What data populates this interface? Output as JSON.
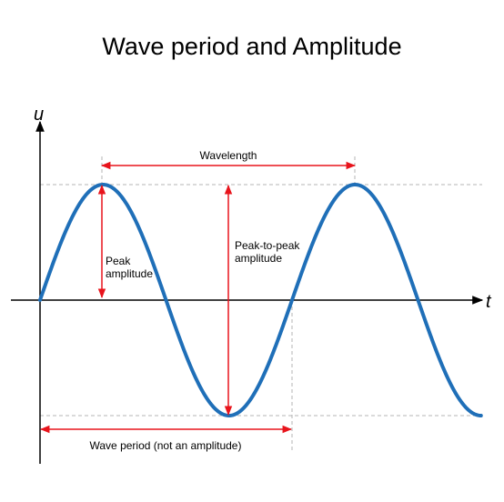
{
  "title": "Wave period and Amplitude",
  "axes": {
    "y_label": "u",
    "x_label": "t"
  },
  "wave": {
    "function": "sine",
    "cycles_shown": 1.75,
    "color": "#1f6fb8"
  },
  "annotations": {
    "wavelength": "Wavelength",
    "peak_amplitude_line1": "Peak",
    "peak_amplitude_line2": "amplitude",
    "peak_to_peak_line1": "Peak-to-peak",
    "peak_to_peak_line2": "amplitude",
    "wave_period": "Wave period (not an amplitude)"
  },
  "colors": {
    "arrow": "#e8141c",
    "guide": "#b4b4b4",
    "axis": "#000000"
  }
}
